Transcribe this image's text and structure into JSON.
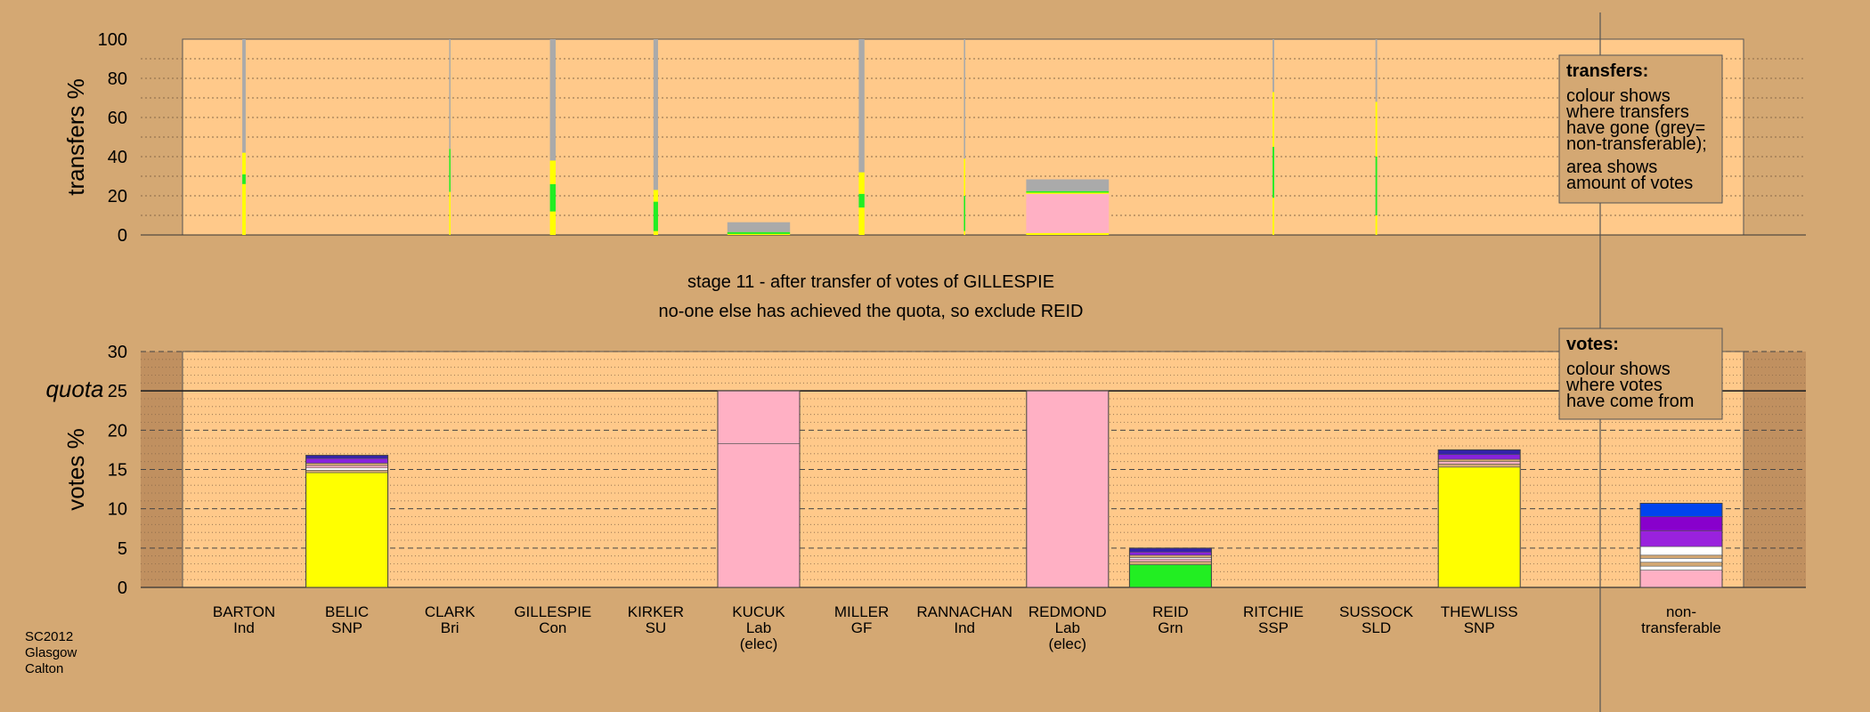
{
  "chart_data": [
    {
      "type": "bar",
      "name": "transfers",
      "ylabel": "transfers %",
      "ylim": [
        0,
        100
      ],
      "yticks": [
        0,
        20,
        40,
        60,
        80,
        100
      ],
      "legend": {
        "placement": "top-right",
        "title": "transfers:",
        "lines": [
          "colour shows",
          "where transfers",
          "have gone (grey=",
          "non-transferable);",
          "area shows",
          "amount of votes"
        ]
      },
      "bars": [
        {
          "candidate": "BARTON",
          "width_pct": 0.6,
          "segments": [
            {
              "color": "#ffff00",
              "value": 26
            },
            {
              "color": "#22ee22",
              "value": 5
            },
            {
              "color": "#ffff00",
              "value": 11
            },
            {
              "color": "#aaaaaa",
              "value": 58
            }
          ]
        },
        {
          "candidate": "CLARK",
          "width_pct": 0.15,
          "segments": [
            {
              "color": "#ffff00",
              "value": 22
            },
            {
              "color": "#22ee22",
              "value": 22
            },
            {
              "color": "#aaaaaa",
              "value": 56
            }
          ]
        },
        {
          "candidate": "GILLESPIE",
          "width_pct": 1.0,
          "segments": [
            {
              "color": "#ffff00",
              "value": 12
            },
            {
              "color": "#22ee22",
              "value": 14
            },
            {
              "color": "#ffff00",
              "value": 12
            },
            {
              "color": "#aaaaaa",
              "value": 62
            }
          ]
        },
        {
          "candidate": "KIRKER",
          "width_pct": 0.8,
          "segments": [
            {
              "color": "#ffff00",
              "value": 2
            },
            {
              "color": "#22ee22",
              "value": 15
            },
            {
              "color": "#ffff00",
              "value": 6
            },
            {
              "color": "#aaaaaa",
              "value": 77
            }
          ]
        },
        {
          "candidate": "KUCUK",
          "width_pct": 11,
          "segments": [
            {
              "color": "#ffff00",
              "value": 0.5
            },
            {
              "color": "#22ee22",
              "value": 1
            },
            {
              "color": "#aaaaaa",
              "value": 5
            }
          ]
        },
        {
          "candidate": "MILLER",
          "width_pct": 1.0,
          "segments": [
            {
              "color": "#ffff00",
              "value": 14
            },
            {
              "color": "#22ee22",
              "value": 7
            },
            {
              "color": "#ffff00",
              "value": 11
            },
            {
              "color": "#aaaaaa",
              "value": 68
            }
          ]
        },
        {
          "candidate": "RANNACHAN",
          "width_pct": 0.25,
          "segments": [
            {
              "color": "#ffff00",
              "value": 2
            },
            {
              "color": "#22ee22",
              "value": 18
            },
            {
              "color": "#ffff00",
              "value": 19
            },
            {
              "color": "#aaaaaa",
              "value": 61
            }
          ]
        },
        {
          "candidate": "REDMOND",
          "width_pct": 14.5,
          "segments": [
            {
              "color": "#ffff00",
              "value": 1
            },
            {
              "color": "#ffb0c4",
              "value": 20
            },
            {
              "color": "#ffff00",
              "value": 0.6
            },
            {
              "color": "#22ee22",
              "value": 0.8
            },
            {
              "color": "#aaaaaa",
              "value": 6
            }
          ]
        },
        {
          "candidate": "RITCHIE",
          "width_pct": 0.3,
          "segments": [
            {
              "color": "#ffff00",
              "value": 19
            },
            {
              "color": "#22ee22",
              "value": 26
            },
            {
              "color": "#ffff00",
              "value": 28
            },
            {
              "color": "#aaaaaa",
              "value": 27
            }
          ]
        },
        {
          "candidate": "SUSSOCK",
          "width_pct": 0.3,
          "segments": [
            {
              "color": "#ffff00",
              "value": 10
            },
            {
              "color": "#22ee22",
              "value": 30
            },
            {
              "color": "#ffff00",
              "value": 28
            },
            {
              "color": "#aaaaaa",
              "value": 32
            }
          ]
        }
      ]
    },
    {
      "type": "bar",
      "name": "votes",
      "ylabel": "votes %",
      "ylim": [
        0,
        30
      ],
      "yticks": [
        0,
        5,
        10,
        15,
        20,
        25,
        30
      ],
      "quota_label": "quota",
      "quota": 25,
      "legend": {
        "placement": "top-right",
        "title": "votes:",
        "lines": [
          "colour shows",
          "where votes",
          "have come from"
        ]
      },
      "categories": [
        {
          "name": "BARTON",
          "party": "Ind",
          "note": ""
        },
        {
          "name": "BELIC",
          "party": "SNP",
          "note": ""
        },
        {
          "name": "CLARK",
          "party": "Bri",
          "note": ""
        },
        {
          "name": "GILLESPIE",
          "party": "Con",
          "note": ""
        },
        {
          "name": "KIRKER",
          "party": "SU",
          "note": ""
        },
        {
          "name": "KUCUK",
          "party": "Lab",
          "note": "(elec)"
        },
        {
          "name": "MILLER",
          "party": "GF",
          "note": ""
        },
        {
          "name": "RANNACHAN",
          "party": "Ind",
          "note": ""
        },
        {
          "name": "REDMOND",
          "party": "Lab",
          "note": "(elec)"
        },
        {
          "name": "REID",
          "party": "Grn",
          "note": ""
        },
        {
          "name": "RITCHIE",
          "party": "SSP",
          "note": ""
        },
        {
          "name": "SUSSOCK",
          "party": "SLD",
          "note": ""
        },
        {
          "name": "THEWLISS",
          "party": "SNP",
          "note": ""
        }
      ],
      "nontransferable_label": [
        "non-",
        "transferable"
      ],
      "bars": [
        {
          "candidate": "BELIC",
          "segments": [
            {
              "color": "#ffff00",
              "value": 14.6
            },
            {
              "color": "#d4a873",
              "value": 0.3
            },
            {
              "color": "#ffffff",
              "value": 0.3
            },
            {
              "color": "#ffb0c4",
              "value": 0.3
            },
            {
              "color": "#d4a873",
              "value": 0.3
            },
            {
              "color": "#8822dd",
              "value": 0.6
            },
            {
              "color": "#3322aa",
              "value": 0.4
            }
          ]
        },
        {
          "candidate": "KUCUK",
          "segments": [
            {
              "color": "#ffb0c4",
              "value": 18.3
            },
            {
              "color": "#ffb0c4",
              "value": 6.7
            }
          ]
        },
        {
          "candidate": "REDMOND",
          "segments": [
            {
              "color": "#ffb0c4",
              "value": 25
            }
          ]
        },
        {
          "candidate": "REID",
          "segments": [
            {
              "color": "#22ee22",
              "value": 2.9
            },
            {
              "color": "#d4a873",
              "value": 0.4
            },
            {
              "color": "#ffb0c4",
              "value": 0.3
            },
            {
              "color": "#ffffff",
              "value": 0.2
            },
            {
              "color": "#d4a873",
              "value": 0.3
            },
            {
              "color": "#8822dd",
              "value": 0.4
            },
            {
              "color": "#3322aa",
              "value": 0.5
            }
          ]
        },
        {
          "candidate": "THEWLISS",
          "segments": [
            {
              "color": "#ffff00",
              "value": 15.3
            },
            {
              "color": "#d4a873",
              "value": 0.4
            },
            {
              "color": "#ffb0c4",
              "value": 0.3
            },
            {
              "color": "#d4a873",
              "value": 0.3
            },
            {
              "color": "#8822dd",
              "value": 0.6
            },
            {
              "color": "#3322aa",
              "value": 0.6
            }
          ]
        },
        {
          "candidate": "non-transferable",
          "segments": [
            {
              "color": "#ffb0c4",
              "value": 2.2
            },
            {
              "color": "#ffffff",
              "value": 0.5
            },
            {
              "color": "#d4a873",
              "value": 0.5
            },
            {
              "color": "#ffffff",
              "value": 0.5
            },
            {
              "color": "#d4a873",
              "value": 0.4
            },
            {
              "color": "#ffffff",
              "value": 1.1
            },
            {
              "color": "#9922dd",
              "value": 2.0
            },
            {
              "color": "#8800cc",
              "value": 1.8
            },
            {
              "color": "#0044ee",
              "value": 1.7
            }
          ]
        }
      ]
    }
  ],
  "stage_title": "stage 11 - after transfer of votes of GILLESPIE",
  "stage_subtitle": "no-one else has achieved the quota, so exclude REID",
  "footer": [
    "SC2012",
    "Glasgow",
    "Calton"
  ],
  "colors": {
    "background": "#d4a873",
    "plot_area": "#ffc98a",
    "dark_band": "#c09060"
  }
}
